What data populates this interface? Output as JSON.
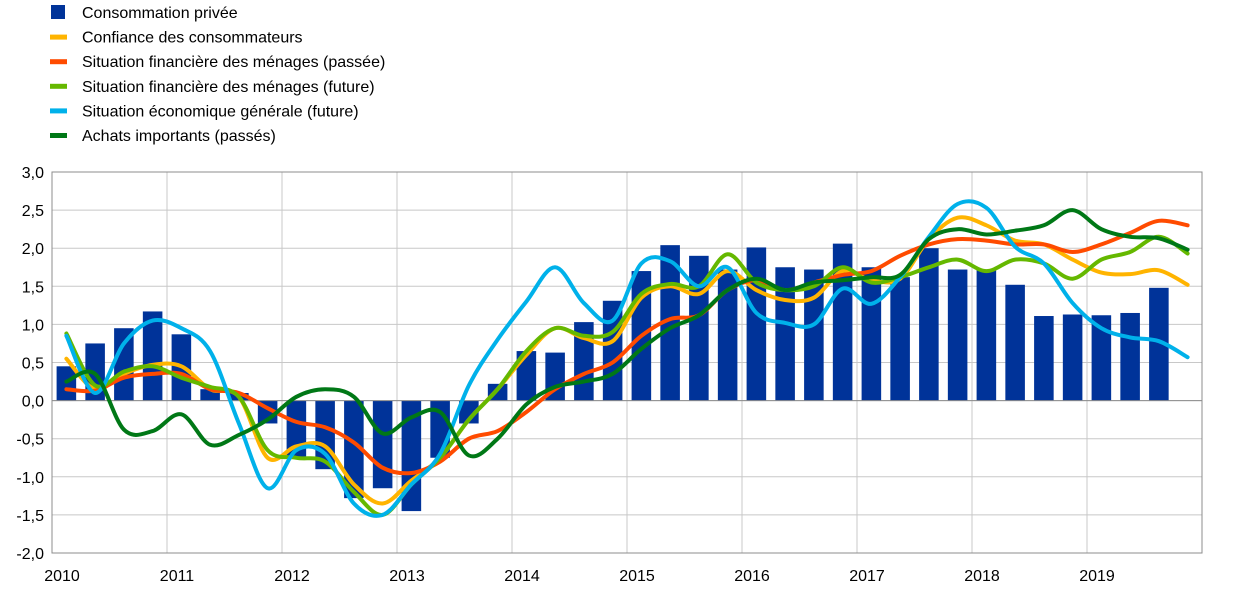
{
  "chart_data": {
    "type": "bar+line",
    "title": "",
    "xlabel": "",
    "ylabel": "",
    "ylim": [
      -2.0,
      3.0
    ],
    "yticks": [
      "3,0",
      "2,5",
      "2,0",
      "1,5",
      "1,0",
      "0,5",
      "0,0",
      "-0,5",
      "-1,0",
      "-1,5",
      "-2,0"
    ],
    "xticks": [
      "2010",
      "2011",
      "2012",
      "2013",
      "2014",
      "2015",
      "2016",
      "2017",
      "2018",
      "2019"
    ],
    "grid": "horizontal and vertical (yearly)",
    "legend_position": "top-left",
    "x_range": [
      2010.0,
      2020.0
    ],
    "bars": {
      "name": "Consommation privée",
      "color": "#003399",
      "x": [
        2010.0,
        2010.25,
        2010.5,
        2010.75,
        2011.0,
        2011.25,
        2011.5,
        2011.75,
        2012.0,
        2012.25,
        2012.5,
        2012.75,
        2013.0,
        2013.25,
        2013.5,
        2013.75,
        2014.0,
        2014.25,
        2014.5,
        2014.75,
        2015.0,
        2015.25,
        2015.5,
        2015.75,
        2016.0,
        2016.25,
        2016.5,
        2016.75,
        2017.0,
        2017.25,
        2017.5,
        2017.75,
        2018.0,
        2018.25,
        2018.5,
        2018.75,
        2019.0,
        2019.25,
        2019.5
      ],
      "values": [
        0.45,
        0.75,
        0.95,
        1.17,
        0.87,
        0.15,
        0.1,
        -0.3,
        -0.75,
        -0.9,
        -1.28,
        -1.15,
        -1.45,
        -0.75,
        -0.3,
        0.22,
        0.65,
        0.63,
        1.03,
        1.31,
        1.7,
        2.04,
        1.9,
        1.72,
        2.01,
        1.75,
        1.72,
        2.06,
        1.75,
        1.62,
        2.0,
        1.72,
        1.72,
        1.52,
        1.11,
        1.13,
        1.12,
        1.15,
        1.48
      ]
    },
    "series": [
      {
        "name": "Confiance des consommateurs",
        "color": "#FFB400",
        "x": [
          2010.0,
          2010.25,
          2010.5,
          2010.75,
          2011.0,
          2011.25,
          2011.5,
          2011.75,
          2012.0,
          2012.25,
          2012.5,
          2012.75,
          2013.0,
          2013.25,
          2013.5,
          2013.75,
          2014.0,
          2014.25,
          2014.5,
          2014.75,
          2015.0,
          2015.25,
          2015.5,
          2015.75,
          2016.0,
          2016.25,
          2016.5,
          2016.75,
          2017.0,
          2017.25,
          2017.5,
          2017.75,
          2018.0,
          2018.25,
          2018.5,
          2018.75,
          2019.0,
          2019.25,
          2019.5,
          2019.75
        ],
        "values": [
          0.55,
          0.15,
          0.35,
          0.47,
          0.45,
          0.15,
          0.05,
          -0.75,
          -0.6,
          -0.6,
          -1.1,
          -1.35,
          -1.05,
          -0.75,
          -0.25,
          0.15,
          0.6,
          0.95,
          0.82,
          0.78,
          1.35,
          1.5,
          1.4,
          1.7,
          1.45,
          1.32,
          1.35,
          1.7,
          1.58,
          1.6,
          2.12,
          2.4,
          2.3,
          2.1,
          2.05,
          1.85,
          1.68,
          1.66,
          1.71,
          1.52
        ]
      },
      {
        "name": "Situation financière des ménages (passée)",
        "color": "#FF4B00",
        "x": [
          2010.0,
          2010.25,
          2010.5,
          2010.75,
          2011.0,
          2011.25,
          2011.5,
          2011.75,
          2012.0,
          2012.25,
          2012.5,
          2012.75,
          2013.0,
          2013.25,
          2013.5,
          2013.75,
          2014.0,
          2014.25,
          2014.5,
          2014.75,
          2015.0,
          2015.25,
          2015.5,
          2015.75,
          2016.0,
          2016.25,
          2016.5,
          2016.75,
          2017.0,
          2017.25,
          2017.5,
          2017.75,
          2018.0,
          2018.25,
          2018.5,
          2018.75,
          2019.0,
          2019.25,
          2019.5,
          2019.75
        ],
        "values": [
          0.15,
          0.13,
          0.3,
          0.35,
          0.35,
          0.15,
          0.1,
          -0.1,
          -0.28,
          -0.35,
          -0.55,
          -0.88,
          -0.95,
          -0.8,
          -0.5,
          -0.4,
          -0.15,
          0.15,
          0.35,
          0.5,
          0.85,
          1.07,
          1.12,
          1.45,
          1.58,
          1.45,
          1.55,
          1.65,
          1.7,
          1.9,
          2.05,
          2.12,
          2.1,
          2.05,
          2.05,
          1.95,
          2.05,
          2.2,
          2.36,
          2.3
        ]
      },
      {
        "name": "Situation financière des ménages (future)",
        "color": "#65B800",
        "x": [
          2010.0,
          2010.25,
          2010.5,
          2010.75,
          2011.0,
          2011.25,
          2011.5,
          2011.75,
          2012.0,
          2012.25,
          2012.5,
          2012.75,
          2013.0,
          2013.25,
          2013.5,
          2013.75,
          2014.0,
          2014.25,
          2014.5,
          2014.75,
          2015.0,
          2015.25,
          2015.5,
          2015.75,
          2016.0,
          2016.25,
          2016.5,
          2016.75,
          2017.0,
          2017.25,
          2017.5,
          2017.75,
          2018.0,
          2018.25,
          2018.5,
          2018.75,
          2019.0,
          2019.25,
          2019.5,
          2019.75
        ],
        "values": [
          0.88,
          0.2,
          0.38,
          0.45,
          0.3,
          0.18,
          0.05,
          -0.65,
          -0.75,
          -0.8,
          -1.2,
          -1.5,
          -1.1,
          -0.75,
          -0.25,
          0.15,
          0.65,
          0.95,
          0.85,
          0.9,
          1.4,
          1.53,
          1.5,
          1.92,
          1.55,
          1.45,
          1.5,
          1.75,
          1.55,
          1.62,
          1.75,
          1.85,
          1.7,
          1.85,
          1.8,
          1.6,
          1.85,
          1.95,
          2.15,
          1.93
        ]
      },
      {
        "name": "Situation économique générale (future)",
        "color": "#00B1EA",
        "x": [
          2010.0,
          2010.25,
          2010.5,
          2010.75,
          2011.0,
          2011.25,
          2011.5,
          2011.75,
          2012.0,
          2012.25,
          2012.5,
          2012.75,
          2013.0,
          2013.25,
          2013.5,
          2013.75,
          2014.0,
          2014.25,
          2014.5,
          2014.75,
          2015.0,
          2015.25,
          2015.5,
          2015.75,
          2016.0,
          2016.25,
          2016.5,
          2016.75,
          2017.0,
          2017.25,
          2017.5,
          2017.75,
          2018.0,
          2018.25,
          2018.5,
          2018.75,
          2019.0,
          2019.25,
          2019.5,
          2019.75
        ],
        "values": [
          0.85,
          0.1,
          0.75,
          1.05,
          0.95,
          0.65,
          -0.3,
          -1.15,
          -0.65,
          -0.7,
          -1.35,
          -1.5,
          -1.1,
          -0.7,
          0.2,
          0.8,
          1.3,
          1.75,
          1.28,
          1.05,
          1.8,
          1.83,
          1.5,
          1.75,
          1.15,
          1.02,
          1.0,
          1.47,
          1.27,
          1.62,
          2.15,
          2.58,
          2.53,
          2.02,
          1.8,
          1.28,
          0.95,
          0.83,
          0.78,
          0.57
        ]
      },
      {
        "name": "Achats importants (passés)",
        "color": "#007816",
        "x": [
          2010.0,
          2010.25,
          2010.5,
          2010.75,
          2011.0,
          2011.25,
          2011.5,
          2011.75,
          2012.0,
          2012.25,
          2012.5,
          2012.75,
          2013.0,
          2013.25,
          2013.5,
          2013.75,
          2014.0,
          2014.25,
          2014.5,
          2014.75,
          2015.0,
          2015.25,
          2015.5,
          2015.75,
          2016.0,
          2016.25,
          2016.5,
          2016.75,
          2017.0,
          2017.25,
          2017.5,
          2017.75,
          2018.0,
          2018.25,
          2018.5,
          2018.75,
          2019.0,
          2019.25,
          2019.5,
          2019.75
        ],
        "values": [
          0.25,
          0.35,
          -0.38,
          -0.4,
          -0.18,
          -0.58,
          -0.45,
          -0.25,
          0.05,
          0.15,
          0.05,
          -0.43,
          -0.22,
          -0.15,
          -0.72,
          -0.5,
          -0.05,
          0.18,
          0.25,
          0.35,
          0.68,
          0.95,
          1.12,
          1.45,
          1.6,
          1.45,
          1.55,
          1.58,
          1.62,
          1.65,
          2.12,
          2.25,
          2.18,
          2.23,
          2.3,
          2.5,
          2.25,
          2.15,
          2.13,
          1.98
        ]
      }
    ]
  }
}
